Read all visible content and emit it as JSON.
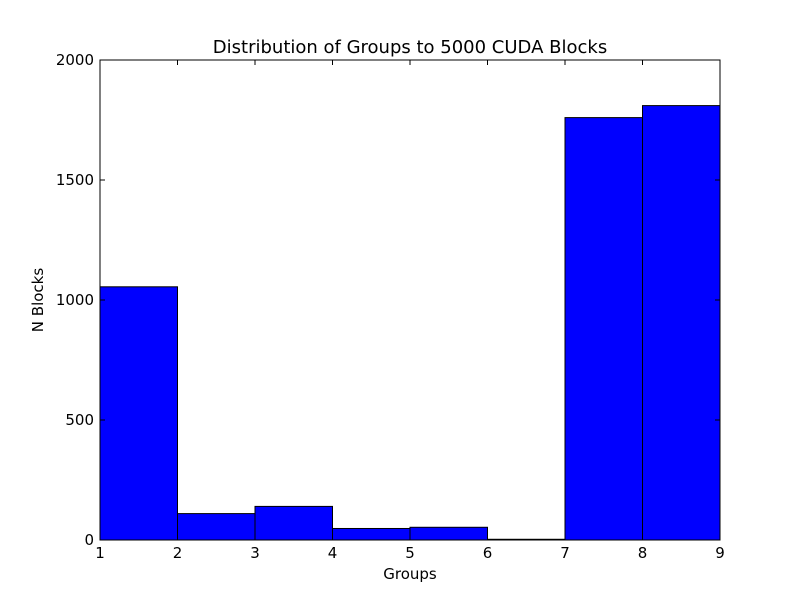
{
  "chart_data": {
    "type": "bar",
    "title": "Distribution of Groups to 5000 CUDA Blocks",
    "xlabel": "Groups",
    "ylabel": "N Blocks",
    "xlim": [
      1,
      9
    ],
    "ylim": [
      0,
      2000
    ],
    "x_ticks": [
      "1",
      "2",
      "3",
      "4",
      "5",
      "6",
      "7",
      "8",
      "9"
    ],
    "y_ticks": [
      "0",
      "500",
      "1000",
      "1500",
      "2000"
    ],
    "bins": [
      {
        "start": 1,
        "end": 2,
        "value": 1055
      },
      {
        "start": 2,
        "end": 3,
        "value": 110
      },
      {
        "start": 3,
        "end": 4,
        "value": 140
      },
      {
        "start": 4,
        "end": 5,
        "value": 48
      },
      {
        "start": 5,
        "end": 6,
        "value": 53
      },
      {
        "start": 6,
        "end": 7,
        "value": 3
      },
      {
        "start": 7,
        "end": 8,
        "value": 1760
      },
      {
        "start": 8,
        "end": 9,
        "value": 1810
      }
    ],
    "bar_color": "#0000ff",
    "edge_color": "#000000",
    "grid": false,
    "legend": "none"
  }
}
